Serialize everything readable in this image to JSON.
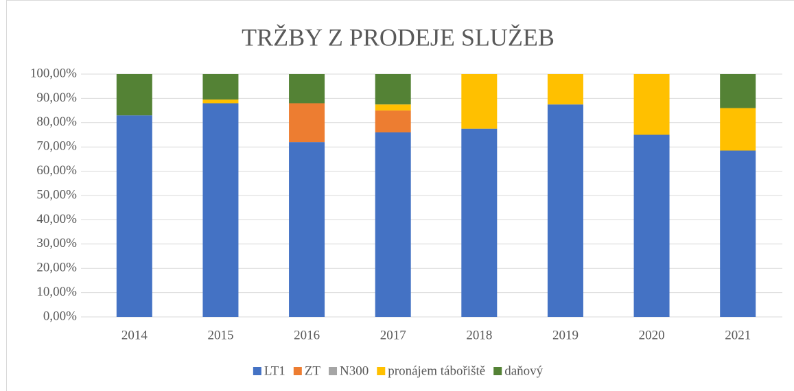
{
  "chart_data": {
    "type": "stacked_bar",
    "title": "TRŽBY Z PRODEJE SLUŽEB",
    "categories": [
      "2014",
      "2015",
      "2016",
      "2017",
      "2018",
      "2019",
      "2020",
      "2021"
    ],
    "series": [
      {
        "name": "LT1",
        "color": "#4472c4",
        "values": [
          83,
          88,
          72,
          76,
          77.5,
          87.5,
          75,
          68.5
        ]
      },
      {
        "name": "ZT",
        "color": "#ed7d31",
        "values": [
          0,
          0,
          16,
          9,
          0,
          0,
          0,
          0
        ]
      },
      {
        "name": "N300",
        "color": "#a5a5a5",
        "values": [
          0,
          0,
          0,
          0,
          0,
          0,
          0,
          0
        ]
      },
      {
        "name": "pronájem tábořiště",
        "color": "#ffc000",
        "values": [
          0,
          1.5,
          0,
          2.5,
          22.5,
          12.5,
          25,
          17.5
        ]
      },
      {
        "name": "daňový",
        "color": "#548235",
        "values": [
          17,
          10.5,
          12,
          12.5,
          0,
          0,
          0,
          14
        ]
      }
    ],
    "ylim": [
      0,
      100
    ],
    "yticks": [
      {
        "value": 0,
        "label": "0,00%"
      },
      {
        "value": 10,
        "label": "10,00%"
      },
      {
        "value": 20,
        "label": "20,00%"
      },
      {
        "value": 30,
        "label": "30,00%"
      },
      {
        "value": 40,
        "label": "40,00%"
      },
      {
        "value": 50,
        "label": "50,00%"
      },
      {
        "value": 60,
        "label": "60,00%"
      },
      {
        "value": 70,
        "label": "70,00%"
      },
      {
        "value": 80,
        "label": "80,00%"
      },
      {
        "value": 90,
        "label": "90,00%"
      },
      {
        "value": 100,
        "label": "100,00%"
      }
    ],
    "grid": true,
    "legend": "bottom"
  }
}
